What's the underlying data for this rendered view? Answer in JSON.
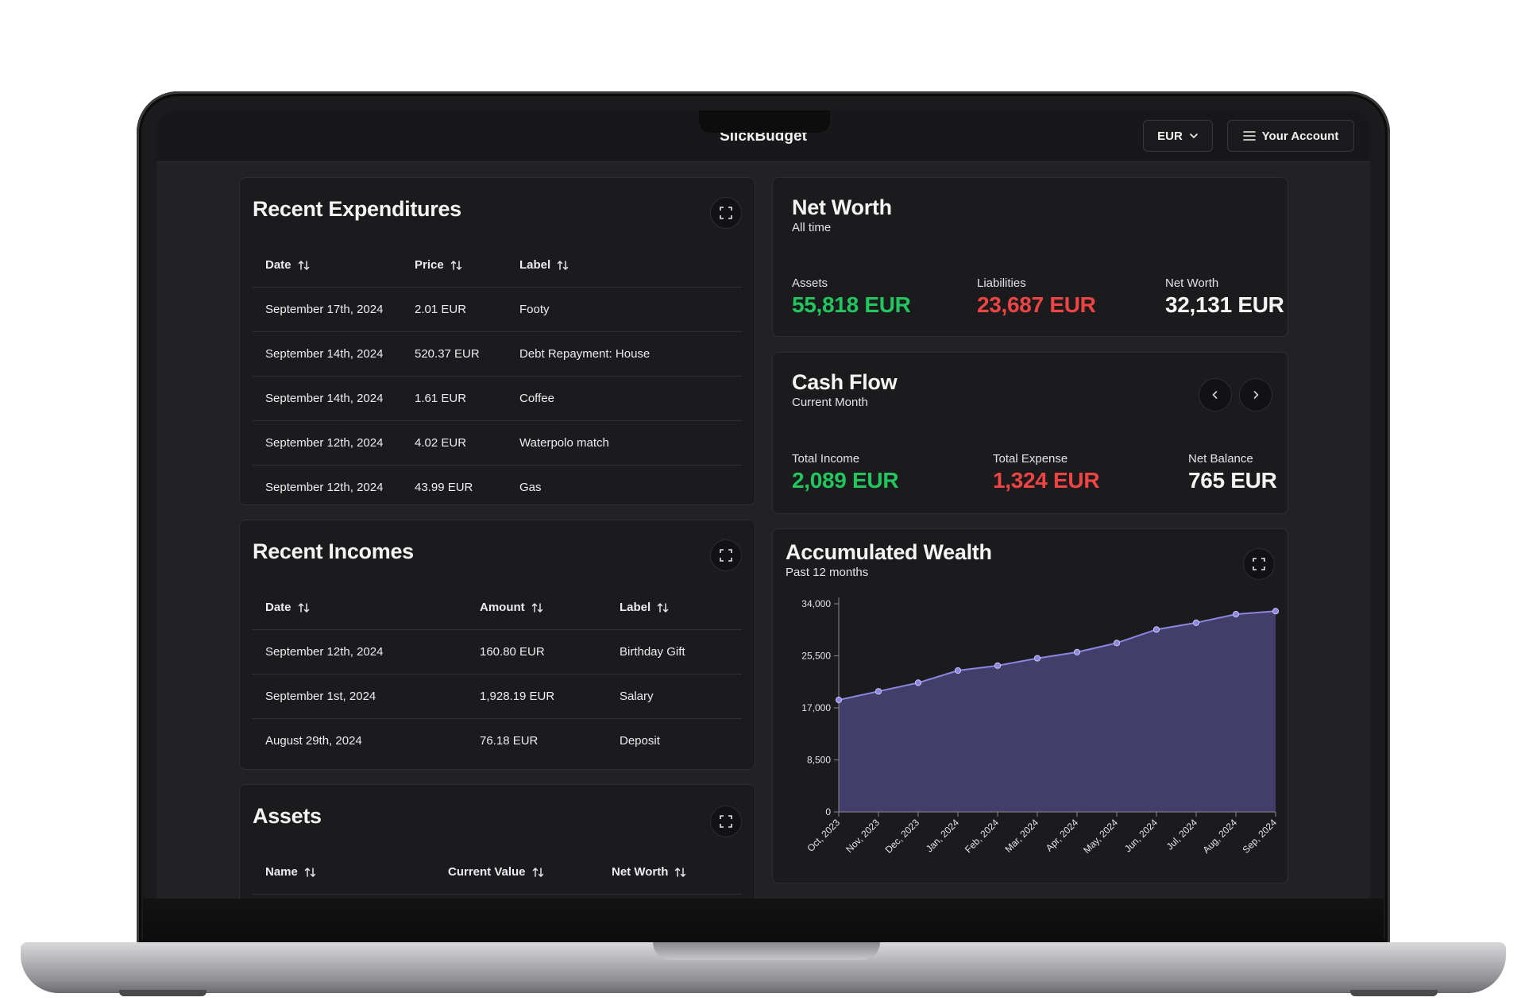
{
  "app": {
    "title": "SlickBudget"
  },
  "header": {
    "currency": "EUR",
    "account_label": "Your Account"
  },
  "expenditures": {
    "title": "Recent Expenditures",
    "columns": [
      "Date",
      "Price",
      "Label"
    ],
    "rows": [
      [
        "September 17th, 2024",
        "2.01 EUR",
        "Footy"
      ],
      [
        "September 14th, 2024",
        "520.37 EUR",
        "Debt Repayment: House"
      ],
      [
        "September 14th, 2024",
        "1.61 EUR",
        "Coffee"
      ],
      [
        "September 12th, 2024",
        "4.02 EUR",
        "Waterpolo match"
      ],
      [
        "September 12th, 2024",
        "43.99 EUR",
        "Gas"
      ]
    ]
  },
  "incomes": {
    "title": "Recent Incomes",
    "columns": [
      "Date",
      "Amount",
      "Label"
    ],
    "rows": [
      [
        "September 12th, 2024",
        "160.80 EUR",
        "Birthday Gift"
      ],
      [
        "September 1st, 2024",
        "1,928.19 EUR",
        "Salary"
      ],
      [
        "August 29th, 2024",
        "76.18 EUR",
        "Deposit"
      ]
    ]
  },
  "assets": {
    "title": "Assets",
    "columns": [
      "Name",
      "Current Value",
      "Net Worth"
    ]
  },
  "net_worth": {
    "title": "Net Worth",
    "subtitle": "All time",
    "assets_label": "Assets",
    "assets_value": "55,818 EUR",
    "liabilities_label": "Liabilities",
    "liabilities_value": "23,687 EUR",
    "net_label": "Net Worth",
    "net_value": "32,131 EUR"
  },
  "cash_flow": {
    "title": "Cash Flow",
    "subtitle": "Current Month",
    "income_label": "Total Income",
    "income_value": "2,089 EUR",
    "expense_label": "Total Expense",
    "expense_value": "1,324 EUR",
    "balance_label": "Net Balance",
    "balance_value": "765 EUR"
  },
  "wealth": {
    "title": "Accumulated Wealth",
    "subtitle": "Past 12 months"
  },
  "colors": {
    "positive": "#22c55e",
    "negative": "#ef4444",
    "accent": "#8b86e0"
  },
  "chart_data": {
    "type": "area",
    "x": [
      "Oct, 2023",
      "Nov, 2023",
      "Dec, 2023",
      "Jan, 2024",
      "Feb, 2024",
      "Mar, 2024",
      "Apr, 2024",
      "May, 2024",
      "Jun, 2024",
      "Jul, 2024",
      "Aug, 2024",
      "Sep, 2024"
    ],
    "values": [
      18300,
      19700,
      21100,
      23100,
      23900,
      25100,
      26100,
      27600,
      29800,
      30900,
      32300,
      32800
    ],
    "y_ticks": [
      0,
      8500,
      17000,
      25500,
      34000
    ],
    "y_tick_labels": [
      "0",
      "8,500",
      "17,000",
      "25,500",
      "34,000"
    ],
    "ylim": [
      0,
      34000
    ],
    "grid": false
  }
}
